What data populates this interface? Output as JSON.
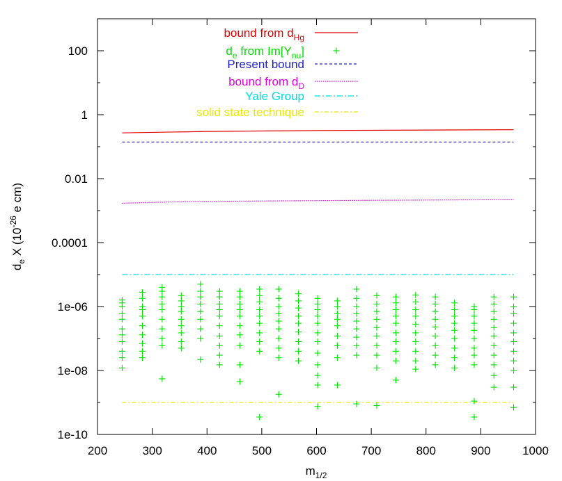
{
  "chart_data": {
    "type": "scatter",
    "xlabel": {
      "base": "m",
      "sub": "1/2"
    },
    "ylabel": {
      "a": "d",
      "a_sub": "e",
      "b": "  X (10",
      "b_sup": "-26",
      "c": " e cm)"
    },
    "xlim": [
      200,
      1000
    ],
    "ylim_log10": [
      -10,
      3
    ],
    "y_log_scale": true,
    "grid": false,
    "legend_position": "top-right",
    "x_ticks": [
      200,
      300,
      400,
      500,
      600,
      700,
      800,
      900,
      1000
    ],
    "x_tick_labels": [
      "200",
      "300",
      "400",
      "500",
      "600",
      "700",
      "800",
      "900",
      "1000"
    ],
    "y_ticks_log10": [
      -10,
      -8,
      -6,
      -4,
      -2,
      0,
      2
    ],
    "y_tick_labels": [
      "1e-10",
      "1e-08",
      "1e-06",
      "0.0001",
      "0.01",
      "1",
      "100"
    ],
    "series": [
      {
        "name_parts": {
          "text": "bound from d",
          "sub": "Hg",
          "tail": ""
        },
        "style": "solid",
        "color": "#e00000",
        "x": [
          245,
          400,
          600,
          800,
          960
        ],
        "y": [
          0.27,
          0.3,
          0.32,
          0.33,
          0.34
        ]
      },
      {
        "name_parts": {
          "text": "d",
          "sub": "e",
          "tail": " from Im[Y",
          "sub2": "nu",
          "tail2": "]"
        },
        "style": "points",
        "color": "#00dd00",
        "x": [],
        "y": []
      },
      {
        "name_parts": {
          "text": "Present bound",
          "sub": "",
          "tail": ""
        },
        "style": "dashed",
        "color": "#2020c0",
        "x": [
          245,
          960
        ],
        "y": [
          0.14,
          0.14
        ]
      },
      {
        "name_parts": {
          "text": "bound from d",
          "sub": "D",
          "tail": ""
        },
        "style": "dotted",
        "color": "#e000e0",
        "x": [
          245,
          350,
          500,
          700,
          960
        ],
        "y": [
          0.0017,
          0.0019,
          0.002,
          0.0021,
          0.0022
        ]
      },
      {
        "name_parts": {
          "text": "Yale Group",
          "sub": "",
          "tail": ""
        },
        "style": "dashdot",
        "color": "#00dddd",
        "x": [
          245,
          960
        ],
        "y": [
          1e-05,
          1e-05
        ]
      },
      {
        "name_parts": {
          "text": "solid state technique",
          "sub": "",
          "tail": ""
        },
        "style": "dashdot2",
        "color": "#e8e800",
        "x": [
          245,
          960
        ],
        "y": [
          1e-09,
          1e-09
        ]
      }
    ],
    "scatter_points": [
      [
        245,
        1.6e-06
      ],
      [
        245,
        1.3e-06
      ],
      [
        245,
        1e-06
      ],
      [
        245,
        6e-07
      ],
      [
        245,
        4e-07
      ],
      [
        245,
        2e-07
      ],
      [
        245,
        1.3e-07
      ],
      [
        245,
        8e-08
      ],
      [
        245,
        4e-08
      ],
      [
        245,
        2.5e-08
      ],
      [
        245,
        1.2e-08
      ],
      [
        282,
        2.8e-06
      ],
      [
        282,
        1.8e-06
      ],
      [
        282,
        1e-06
      ],
      [
        282,
        8e-07
      ],
      [
        282,
        5e-07
      ],
      [
        282,
        2.5e-07
      ],
      [
        282,
        1.3e-07
      ],
      [
        282,
        7e-08
      ],
      [
        282,
        4e-08
      ],
      [
        282,
        2.5e-08
      ],
      [
        318,
        4e-06
      ],
      [
        318,
        3e-06
      ],
      [
        318,
        2e-06
      ],
      [
        318,
        1.2e-06
      ],
      [
        318,
        8e-07
      ],
      [
        318,
        4e-07
      ],
      [
        318,
        2e-07
      ],
      [
        318,
        1e-07
      ],
      [
        318,
        6e-08
      ],
      [
        318,
        5.5e-09
      ],
      [
        353,
        2.2e-06
      ],
      [
        353,
        1.5e-06
      ],
      [
        353,
        1e-06
      ],
      [
        353,
        7e-07
      ],
      [
        353,
        4e-07
      ],
      [
        353,
        2.5e-07
      ],
      [
        353,
        1.5e-07
      ],
      [
        353,
        8e-08
      ],
      [
        353,
        5e-08
      ],
      [
        388,
        5e-06
      ],
      [
        388,
        3e-06
      ],
      [
        388,
        2e-06
      ],
      [
        388,
        1.2e-06
      ],
      [
        388,
        7e-07
      ],
      [
        388,
        4e-07
      ],
      [
        388,
        2e-07
      ],
      [
        388,
        1e-07
      ],
      [
        388,
        2.2e-08
      ],
      [
        423,
        3e-06
      ],
      [
        423,
        2e-06
      ],
      [
        423,
        1.2e-06
      ],
      [
        423,
        8e-07
      ],
      [
        423,
        5e-07
      ],
      [
        423,
        2.5e-07
      ],
      [
        423,
        1.2e-07
      ],
      [
        423,
        6e-08
      ],
      [
        423,
        3e-08
      ],
      [
        423,
        1.5e-08
      ],
      [
        460,
        3e-06
      ],
      [
        460,
        2e-06
      ],
      [
        460,
        1.2e-06
      ],
      [
        460,
        8e-07
      ],
      [
        460,
        5e-07
      ],
      [
        460,
        2.5e-07
      ],
      [
        460,
        1.3e-07
      ],
      [
        460,
        6e-08
      ],
      [
        460,
        1.5e-08
      ],
      [
        460,
        4.5e-09
      ],
      [
        496,
        3.5e-06
      ],
      [
        496,
        2.2e-06
      ],
      [
        496,
        1.4e-06
      ],
      [
        496,
        8e-07
      ],
      [
        496,
        5e-07
      ],
      [
        496,
        3e-07
      ],
      [
        496,
        1.5e-07
      ],
      [
        496,
        8e-08
      ],
      [
        496,
        4e-08
      ],
      [
        496,
        3.5e-10
      ],
      [
        531,
        3.5e-06
      ],
      [
        531,
        1.8e-06
      ],
      [
        531,
        1e-06
      ],
      [
        531,
        6e-07
      ],
      [
        531,
        3.5e-07
      ],
      [
        531,
        2e-07
      ],
      [
        531,
        1e-07
      ],
      [
        531,
        5e-08
      ],
      [
        531,
        2.5e-08
      ],
      [
        531,
        1.8e-09
      ],
      [
        567,
        2.5e-06
      ],
      [
        567,
        1.5e-06
      ],
      [
        567,
        9e-07
      ],
      [
        567,
        5e-07
      ],
      [
        567,
        3e-07
      ],
      [
        567,
        1.6e-07
      ],
      [
        567,
        8e-08
      ],
      [
        567,
        4e-08
      ],
      [
        567,
        2e-08
      ],
      [
        602,
        1.8e-06
      ],
      [
        602,
        1.2e-06
      ],
      [
        602,
        8e-07
      ],
      [
        602,
        5e-07
      ],
      [
        602,
        3e-07
      ],
      [
        602,
        1.5e-07
      ],
      [
        602,
        8e-08
      ],
      [
        602,
        3.5e-08
      ],
      [
        602,
        1.5e-08
      ],
      [
        602,
        7e-09
      ],
      [
        602,
        3.5e-09
      ],
      [
        602,
        7.5e-10
      ],
      [
        638,
        1.5e-06
      ],
      [
        638,
        1e-06
      ],
      [
        638,
        6e-07
      ],
      [
        638,
        4e-07
      ],
      [
        638,
        2.5e-07
      ],
      [
        638,
        1.2e-07
      ],
      [
        638,
        6e-08
      ],
      [
        638,
        2.5e-08
      ],
      [
        638,
        3.5e-09
      ],
      [
        673,
        3.5e-06
      ],
      [
        673,
        1.8e-06
      ],
      [
        673,
        1e-06
      ],
      [
        673,
        6e-07
      ],
      [
        673,
        3.5e-07
      ],
      [
        673,
        2e-07
      ],
      [
        673,
        1.1e-07
      ],
      [
        673,
        6e-08
      ],
      [
        673,
        3e-08
      ],
      [
        673,
        9e-10
      ],
      [
        710,
        2.2e-06
      ],
      [
        710,
        1.2e-06
      ],
      [
        710,
        7e-07
      ],
      [
        710,
        4e-07
      ],
      [
        710,
        2.2e-07
      ],
      [
        710,
        1.2e-07
      ],
      [
        710,
        6e-08
      ],
      [
        710,
        3e-08
      ],
      [
        710,
        1.2e-08
      ],
      [
        710,
        8e-10
      ],
      [
        745,
        2e-06
      ],
      [
        745,
        1.3e-06
      ],
      [
        745,
        8e-07
      ],
      [
        745,
        5e-07
      ],
      [
        745,
        3e-07
      ],
      [
        745,
        1.5e-07
      ],
      [
        745,
        8e-08
      ],
      [
        745,
        4e-08
      ],
      [
        745,
        2e-08
      ],
      [
        745,
        5e-09
      ],
      [
        781,
        2.3e-06
      ],
      [
        781,
        1.4e-06
      ],
      [
        781,
        8e-07
      ],
      [
        781,
        5e-07
      ],
      [
        781,
        2.8e-07
      ],
      [
        781,
        1.5e-07
      ],
      [
        781,
        8e-08
      ],
      [
        781,
        4e-08
      ],
      [
        781,
        2e-08
      ],
      [
        781,
        1.1e-08
      ],
      [
        817,
        2e-06
      ],
      [
        817,
        1.2e-06
      ],
      [
        817,
        7e-07
      ],
      [
        817,
        4e-07
      ],
      [
        817,
        2.3e-07
      ],
      [
        817,
        1.2e-07
      ],
      [
        817,
        6e-08
      ],
      [
        817,
        3e-08
      ],
      [
        817,
        1.5e-08
      ],
      [
        852,
        1.3e-06
      ],
      [
        852,
        8e-07
      ],
      [
        852,
        5e-07
      ],
      [
        852,
        3e-07
      ],
      [
        852,
        1.8e-07
      ],
      [
        852,
        1e-07
      ],
      [
        852,
        5e-08
      ],
      [
        852,
        2.5e-08
      ],
      [
        852,
        1.2e-08
      ],
      [
        888,
        1e-06
      ],
      [
        888,
        8e-07
      ],
      [
        888,
        5e-07
      ],
      [
        888,
        3e-07
      ],
      [
        888,
        1.8e-07
      ],
      [
        888,
        1e-07
      ],
      [
        888,
        5e-08
      ],
      [
        888,
        3e-08
      ],
      [
        888,
        1.5e-08
      ],
      [
        888,
        1.1e-09
      ],
      [
        888,
        3.5e-10
      ],
      [
        924,
        2e-06
      ],
      [
        924,
        1.2e-06
      ],
      [
        924,
        7e-07
      ],
      [
        924,
        4e-07
      ],
      [
        924,
        2.2e-07
      ],
      [
        924,
        1.2e-07
      ],
      [
        924,
        6e-08
      ],
      [
        924,
        3e-08
      ],
      [
        924,
        1.5e-08
      ],
      [
        924,
        7e-09
      ],
      [
        924,
        3e-09
      ],
      [
        960,
        2e-06
      ],
      [
        960,
        1e-06
      ],
      [
        960,
        6e-07
      ],
      [
        960,
        3e-07
      ],
      [
        960,
        1.5e-07
      ],
      [
        960,
        8e-08
      ],
      [
        960,
        4e-08
      ],
      [
        960,
        2e-08
      ],
      [
        960,
        1e-08
      ],
      [
        960,
        3e-09
      ],
      [
        960,
        7e-10
      ]
    ]
  }
}
